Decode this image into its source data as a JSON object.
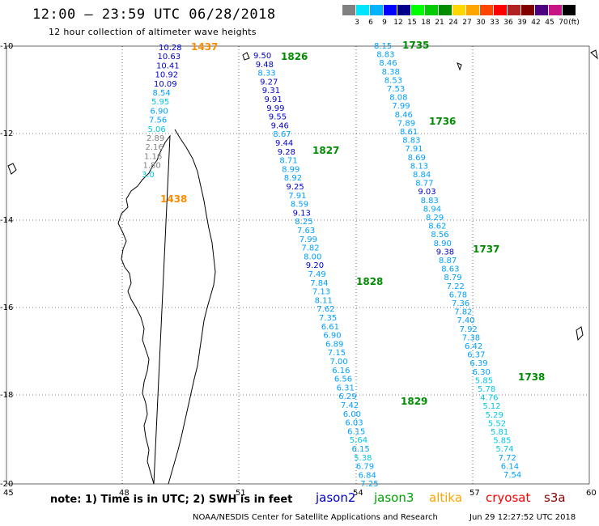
{
  "header": {
    "title": "12:00 – 23:59 UTC 06/28/2018",
    "subtitle": "12 hour collection of altimeter wave heights"
  },
  "legend": {
    "unit": "(ft)",
    "colors": [
      "#808080",
      "#00e5ff",
      "#00b3ff",
      "#0000ff",
      "#00008b",
      "#00ff00",
      "#00cc00",
      "#008b00",
      "#ffd700",
      "#ffa500",
      "#ff4500",
      "#ff0000",
      "#b22222",
      "#800000",
      "#4b0082",
      "#c71585",
      "#000000"
    ],
    "labels": [
      "3",
      "6",
      "9",
      "12",
      "15",
      "18",
      "21",
      "24",
      "27",
      "30",
      "33",
      "36",
      "39",
      "42",
      "45",
      "70"
    ]
  },
  "axes": {
    "lat_labels": [
      "-10",
      "-12",
      "-14",
      "-16",
      "-18",
      "-20"
    ],
    "lon_labels": [
      "45",
      "48",
      "51",
      "54",
      "57",
      "60"
    ]
  },
  "tracks": [
    {
      "satellite": "altika",
      "orbits": [
        {
          "time": "1437",
          "color": "#ff8c00"
        },
        {
          "time": "1438",
          "color": "#ff8c00"
        }
      ],
      "values": [
        "10.28",
        "10.63",
        "10.41",
        "10.92",
        "10.09",
        "8.54",
        "5.95",
        "6.90",
        "7.56",
        "5.06",
        "2.89",
        "2.16",
        "1.16",
        "1.80",
        "3.0"
      ]
    },
    {
      "satellite": "jason3",
      "orbits": [
        {
          "time": "1826",
          "color": "#008b00"
        },
        {
          "time": "1827",
          "color": "#008b00"
        },
        {
          "time": "1828",
          "color": "#008b00"
        },
        {
          "time": "1829",
          "color": "#008b00"
        }
      ],
      "values": [
        "9.50",
        "9.48",
        "8.33",
        "9.27",
        "9.31",
        "9.91",
        "9.99",
        "9.55",
        "9.46",
        "8.67",
        "9.44",
        "9.28",
        "8.71",
        "8.99",
        "8.92",
        "9.25",
        "7.91",
        "8.59",
        "9.13",
        "8.25",
        "7.63",
        "7.99",
        "7.82",
        "8.00",
        "9.20",
        "7.49",
        "7.84",
        "7.13",
        "8.11",
        "7.62",
        "7.35",
        "6.61",
        "6.90",
        "6.89",
        "7.15",
        "7.00",
        "6.16",
        "6.56",
        "6.31",
        "6.29",
        "7.42",
        "6.00",
        "6.03",
        "6.15",
        "5.64",
        "6.15",
        "5.38",
        "6.79",
        "6.84",
        "7.25"
      ]
    },
    {
      "satellite": "jason3",
      "orbits": [
        {
          "time": "1735",
          "color": "#008b00"
        },
        {
          "time": "1736",
          "color": "#008b00"
        },
        {
          "time": "1737",
          "color": "#008b00"
        },
        {
          "time": "1738",
          "color": "#008b00"
        }
      ],
      "values": [
        "8.15",
        "8.83",
        "8.46",
        "8.38",
        "8.53",
        "7.53",
        "8.08",
        "7.99",
        "8.46",
        "7.89",
        "8.61",
        "8.83",
        "7.91",
        "8.69",
        "8.13",
        "8.84",
        "8.77",
        "9.03",
        "8.83",
        "8.94",
        "8.29",
        "8.62",
        "8.56",
        "8.90",
        "9.38",
        "8.87",
        "8.63",
        "8.79",
        "7.22",
        "6.78",
        "7.36",
        "7.82",
        "7.40",
        "7.92",
        "7.38",
        "6.42",
        "6.37",
        "6.39",
        "6.30",
        "5.85",
        "5.78",
        "4.76",
        "5.12",
        "5.29",
        "5.52",
        "5.81",
        "5.85",
        "5.74",
        "7.72",
        "6.14",
        "7.54"
      ]
    }
  ],
  "footer": {
    "note": "note: 1) Time is in UTC; 2) SWH is in feet",
    "satellites": [
      {
        "name": "jason2",
        "color": "#0000cd"
      },
      {
        "name": "jason3",
        "color": "#00a000"
      },
      {
        "name": "altika",
        "color": "#ffa500"
      },
      {
        "name": "cryosat",
        "color": "#ff0000"
      },
      {
        "name": "s3a",
        "color": "#8b0000"
      }
    ],
    "credit": "NOAA/NESDIS Center for Satellite Applications and Research",
    "timestamp": "Jun 29 12:27:52 UTC 2018"
  }
}
